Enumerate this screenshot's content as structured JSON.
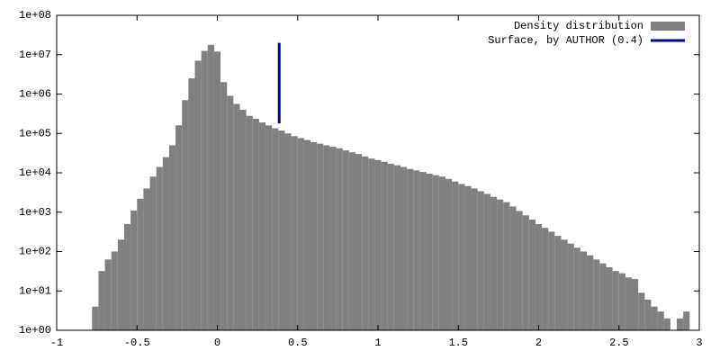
{
  "chart_data": {
    "type": "histogram",
    "log_y": true,
    "bins": [
      -0.78,
      -0.74,
      -0.7,
      -0.66,
      -0.62,
      -0.58,
      -0.54,
      -0.5,
      -0.46,
      -0.42,
      -0.38,
      -0.34,
      -0.3,
      -0.26,
      -0.22,
      -0.18,
      -0.14,
      -0.1,
      -0.06,
      -0.02,
      0.02,
      0.06,
      0.1,
      0.14,
      0.18,
      0.22,
      0.26,
      0.3,
      0.34,
      0.38,
      0.42,
      0.46,
      0.5,
      0.54,
      0.58,
      0.62,
      0.66,
      0.7,
      0.74,
      0.78,
      0.82,
      0.86,
      0.9,
      0.94,
      0.98,
      1.02,
      1.06,
      1.1,
      1.14,
      1.18,
      1.22,
      1.26,
      1.3,
      1.34,
      1.38,
      1.42,
      1.46,
      1.5,
      1.54,
      1.58,
      1.62,
      1.66,
      1.7,
      1.74,
      1.78,
      1.82,
      1.86,
      1.9,
      1.94,
      1.98,
      2.02,
      2.06,
      2.1,
      2.14,
      2.18,
      2.22,
      2.26,
      2.3,
      2.34,
      2.38,
      2.42,
      2.46,
      2.5,
      2.54,
      2.58,
      2.62,
      2.66,
      2.7,
      2.74,
      2.78,
      2.82,
      2.86,
      2.9,
      2.94
    ],
    "series": [
      {
        "name": "Density distribution",
        "color": "#808080",
        "values": [
          4,
          32,
          63,
          100,
          200,
          500,
          1100,
          2200,
          4000,
          8000,
          14000,
          25000,
          50000,
          160000,
          700000,
          2500000,
          7000000,
          12500000,
          17800000,
          12000000,
          2000000,
          900000,
          560000,
          400000,
          280000,
          235000,
          190000,
          160000,
          135000,
          118000,
          100000,
          85000,
          76000,
          68000,
          60000,
          55000,
          50000,
          46000,
          42000,
          37000,
          33000,
          30000,
          26000,
          23000,
          21000,
          19000,
          17000,
          15500,
          14000,
          12500,
          11500,
          10500,
          9500,
          8700,
          8000,
          7000,
          6000,
          5200,
          4600,
          4000,
          3400,
          2900,
          2450,
          2100,
          1800,
          1400,
          1070,
          830,
          650,
          500,
          400,
          320,
          250,
          200,
          160,
          125,
          100,
          80,
          63,
          50,
          40,
          32,
          28,
          22,
          20,
          9,
          6,
          4,
          3,
          2,
          null,
          2,
          3
        ]
      }
    ],
    "lines": [
      {
        "name": "Surface, by AUTHOR (0.4)",
        "color": "#0000aa",
        "x": [
          0.385,
          0.385
        ],
        "values": [
          180000,
          20000000
        ]
      }
    ],
    "xlim": [
      -1,
      3
    ],
    "xticks": [
      -1,
      -0.5,
      0,
      0.5,
      1,
      1.5,
      2,
      2.5,
      3
    ],
    "ylim": [
      1,
      100000000
    ],
    "yticks": [
      {
        "value": 1,
        "label": "1e+00"
      },
      {
        "value": 10,
        "label": "1e+01"
      },
      {
        "value": 100,
        "label": "1e+02"
      },
      {
        "value": 1000,
        "label": "1e+03"
      },
      {
        "value": 10000,
        "label": "1e+04"
      },
      {
        "value": 100000,
        "label": "1e+05"
      },
      {
        "value": 1000000,
        "label": "1e+06"
      },
      {
        "value": 10000000,
        "label": "1e+07"
      },
      {
        "value": 100000000,
        "label": "1e+08"
      }
    ],
    "legend": "top-right"
  }
}
